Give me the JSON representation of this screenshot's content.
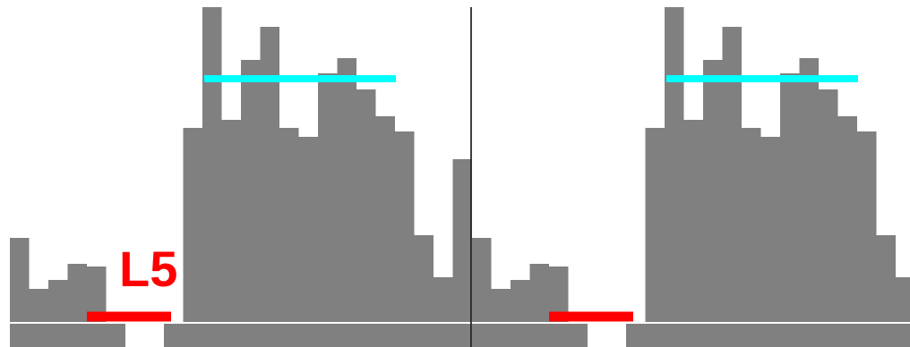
{
  "chart_data": [
    {
      "type": "bar",
      "panel": "left",
      "values": [
        94,
        37,
        47,
        65,
        62,
        0,
        0,
        0,
        0,
        217,
        352,
        226,
        293,
        330,
        217,
        207,
        278,
        295,
        260,
        230,
        213,
        97,
        50,
        182
      ],
      "below_axis": [
        28,
        28,
        28,
        28,
        28,
        28,
        0,
        0,
        28,
        28,
        28,
        28,
        28,
        28,
        28,
        28,
        28,
        28,
        28,
        28,
        28,
        28,
        28,
        28
      ],
      "marker_level": 272,
      "marker_range": [
        10,
        20
      ],
      "gap_range": [
        4,
        8
      ],
      "gap_label": "L5",
      "colors": {
        "bars": "#808080",
        "marker": "#00ffff",
        "gap": "#ff0000",
        "label": "#ff0000",
        "axis": "#ffffff",
        "divider": "#000000"
      }
    },
    {
      "type": "bar",
      "panel": "right",
      "values": [
        94,
        37,
        47,
        65,
        62,
        0,
        0,
        0,
        0,
        217,
        352,
        226,
        293,
        330,
        217,
        207,
        278,
        295,
        260,
        230,
        213,
        97,
        50,
        0
      ],
      "below_axis": [
        28,
        28,
        28,
        28,
        28,
        28,
        0,
        0,
        28,
        28,
        28,
        28,
        28,
        28,
        28,
        28,
        28,
        28,
        28,
        28,
        28,
        28,
        28,
        0
      ],
      "marker_level": 272,
      "marker_range": [
        10,
        20
      ],
      "gap_range": [
        4,
        8
      ],
      "gap_label": "",
      "colors": {
        "bars": "#808080",
        "marker": "#00ffff",
        "gap": "#ff0000",
        "label": "#ff0000",
        "axis": "#ffffff",
        "divider": "#000000"
      }
    }
  ]
}
